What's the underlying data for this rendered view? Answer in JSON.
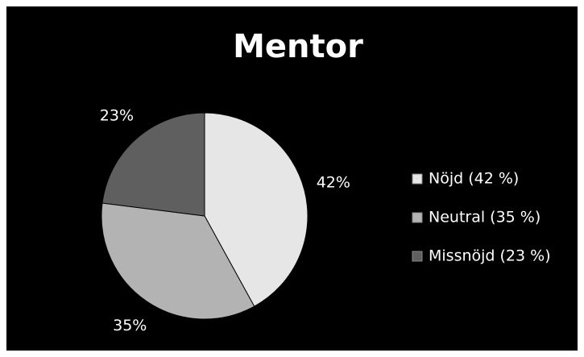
{
  "chart_data": {
    "type": "pie",
    "title": "Mentor",
    "categories": [
      "Nöjd (42 %)",
      "Neutral (35 %)",
      "Missnöjd (23 %)"
    ],
    "values": [
      42,
      35,
      23
    ],
    "value_labels": [
      "42%",
      "35%",
      "23%"
    ],
    "colors": [
      "#e6e6e6",
      "#b3b3b3",
      "#5f5f5f"
    ],
    "legend": "right"
  }
}
